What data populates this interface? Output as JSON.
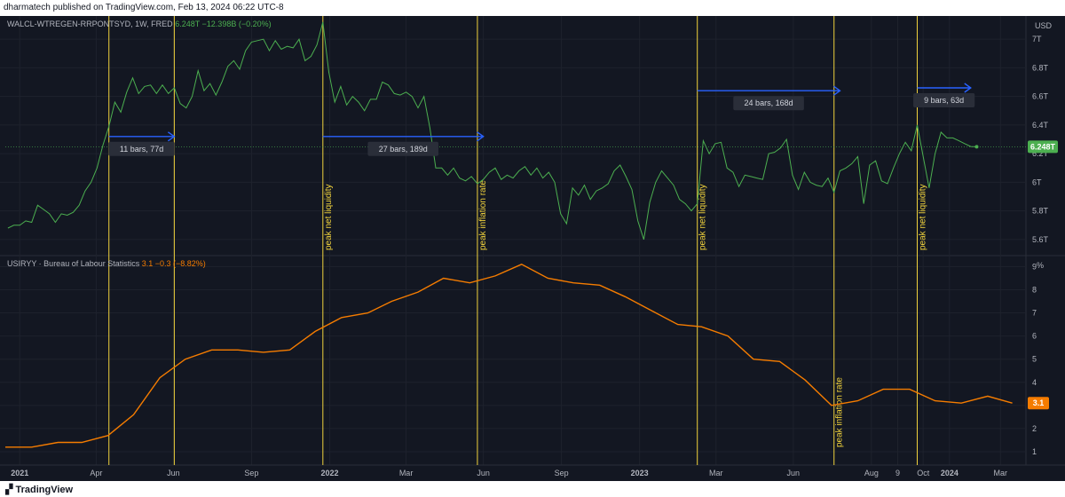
{
  "header": {
    "publish_text": "dharmatech published on TradingView.com, Feb 13, 2024 06:22 UTC-8"
  },
  "footer": {
    "brand": "TradingView"
  },
  "colors": {
    "background": "#131722",
    "liquidity": "#4caf50",
    "cpi": "#f57c00",
    "vline": "#f0d23c",
    "arrow": "#2962ff",
    "text": "#b2b5be"
  },
  "chart_data": [
    {
      "type": "line",
      "legend": {
        "symbol": "WALCL-WTREGEN-RRPONTSYD, 1W, FRED",
        "value": "6.248T",
        "change": "−12.398B (−0.20%)"
      },
      "unit_label": "USD",
      "y_ticks": [
        "5.6T",
        "5.8T",
        "6T",
        "6.2T",
        "6.4T",
        "6.6T",
        "6.8T",
        "7T"
      ],
      "ylim": [
        5.5,
        7.15
      ],
      "last_value_label": "6.248T",
      "series": [
        {
          "values": [
            [
              "2020-12-18",
              5.68
            ],
            [
              "2020-12-25",
              5.7
            ],
            [
              "2021-01-01",
              5.7
            ],
            [
              "2021-01-08",
              5.73
            ],
            [
              "2021-01-15",
              5.72
            ],
            [
              "2021-01-22",
              5.84
            ],
            [
              "2021-01-29",
              5.81
            ],
            [
              "2021-02-05",
              5.78
            ],
            [
              "2021-02-12",
              5.72
            ],
            [
              "2021-02-19",
              5.78
            ],
            [
              "2021-02-26",
              5.77
            ],
            [
              "2021-03-05",
              5.79
            ],
            [
              "2021-03-12",
              5.84
            ],
            [
              "2021-03-19",
              5.94
            ],
            [
              "2021-03-26",
              6.0
            ],
            [
              "2021-04-02",
              6.1
            ],
            [
              "2021-04-09",
              6.26
            ],
            [
              "2021-04-16",
              6.39
            ],
            [
              "2021-04-23",
              6.56
            ],
            [
              "2021-04-30",
              6.49
            ],
            [
              "2021-05-07",
              6.63
            ],
            [
              "2021-05-14",
              6.73
            ],
            [
              "2021-05-21",
              6.62
            ],
            [
              "2021-05-28",
              6.67
            ],
            [
              "2021-06-04",
              6.68
            ],
            [
              "2021-06-11",
              6.62
            ],
            [
              "2021-06-18",
              6.68
            ],
            [
              "2021-06-25",
              6.62
            ],
            [
              "2021-07-02",
              6.66
            ],
            [
              "2021-07-09",
              6.55
            ],
            [
              "2021-07-16",
              6.52
            ],
            [
              "2021-07-23",
              6.6
            ],
            [
              "2021-07-30",
              6.78
            ],
            [
              "2021-08-06",
              6.64
            ],
            [
              "2021-08-13",
              6.69
            ],
            [
              "2021-08-20",
              6.61
            ],
            [
              "2021-08-27",
              6.7
            ],
            [
              "2021-09-03",
              6.81
            ],
            [
              "2021-09-10",
              6.85
            ],
            [
              "2021-09-17",
              6.79
            ],
            [
              "2021-09-24",
              6.92
            ],
            [
              "2021-10-01",
              6.98
            ],
            [
              "2021-10-08",
              6.99
            ],
            [
              "2021-10-15",
              7.0
            ],
            [
              "2021-10-22",
              6.92
            ],
            [
              "2021-10-29",
              6.99
            ],
            [
              "2021-11-05",
              6.93
            ],
            [
              "2021-11-12",
              6.95
            ],
            [
              "2021-11-19",
              6.94
            ],
            [
              "2021-11-26",
              7.0
            ],
            [
              "2021-12-03",
              6.85
            ],
            [
              "2021-12-10",
              6.88
            ],
            [
              "2021-12-17",
              6.96
            ],
            [
              "2021-12-24",
              7.12
            ],
            [
              "2021-12-31",
              6.77
            ],
            [
              "2022-01-07",
              6.56
            ],
            [
              "2022-01-14",
              6.67
            ],
            [
              "2022-01-21",
              6.54
            ],
            [
              "2022-01-28",
              6.6
            ],
            [
              "2022-02-04",
              6.56
            ],
            [
              "2022-02-11",
              6.5
            ],
            [
              "2022-02-18",
              6.58
            ],
            [
              "2022-02-25",
              6.58
            ],
            [
              "2022-03-04",
              6.7
            ],
            [
              "2022-03-11",
              6.68
            ],
            [
              "2022-03-18",
              6.62
            ],
            [
              "2022-03-25",
              6.61
            ],
            [
              "2022-04-01",
              6.63
            ],
            [
              "2022-04-08",
              6.6
            ],
            [
              "2022-04-15",
              6.52
            ],
            [
              "2022-04-22",
              6.6
            ],
            [
              "2022-04-29",
              6.38
            ],
            [
              "2022-05-06",
              6.1
            ],
            [
              "2022-05-13",
              6.1
            ],
            [
              "2022-05-20",
              6.05
            ],
            [
              "2022-05-27",
              6.1
            ],
            [
              "2022-06-03",
              6.03
            ],
            [
              "2022-06-10",
              6.01
            ],
            [
              "2022-06-17",
              6.04
            ],
            [
              "2022-06-24",
              5.99
            ],
            [
              "2022-07-01",
              6.02
            ],
            [
              "2022-07-08",
              6.07
            ],
            [
              "2022-07-15",
              6.1
            ],
            [
              "2022-07-22",
              6.02
            ],
            [
              "2022-07-29",
              6.05
            ],
            [
              "2022-08-05",
              6.03
            ],
            [
              "2022-08-12",
              6.08
            ],
            [
              "2022-08-19",
              6.11
            ],
            [
              "2022-08-26",
              6.05
            ],
            [
              "2022-09-02",
              6.1
            ],
            [
              "2022-09-09",
              6.03
            ],
            [
              "2022-09-16",
              6.07
            ],
            [
              "2022-09-23",
              6.0
            ],
            [
              "2022-09-30",
              5.78
            ],
            [
              "2022-10-07",
              5.71
            ],
            [
              "2022-10-14",
              5.96
            ],
            [
              "2022-10-21",
              5.91
            ],
            [
              "2022-10-28",
              5.98
            ],
            [
              "2022-11-04",
              5.88
            ],
            [
              "2022-11-11",
              5.94
            ],
            [
              "2022-11-18",
              5.96
            ],
            [
              "2022-11-25",
              5.99
            ],
            [
              "2022-12-02",
              6.08
            ],
            [
              "2022-12-09",
              6.12
            ],
            [
              "2022-12-16",
              6.04
            ],
            [
              "2022-12-23",
              5.95
            ],
            [
              "2022-12-30",
              5.73
            ],
            [
              "2023-01-06",
              5.6
            ],
            [
              "2023-01-13",
              5.86
            ],
            [
              "2023-01-20",
              6.0
            ],
            [
              "2023-01-27",
              6.08
            ],
            [
              "2023-02-03",
              6.03
            ],
            [
              "2023-02-10",
              5.98
            ],
            [
              "2023-02-17",
              5.88
            ],
            [
              "2023-02-24",
              5.85
            ],
            [
              "2023-03-03",
              5.8
            ],
            [
              "2023-03-10",
              5.85
            ],
            [
              "2023-03-17",
              6.29
            ],
            [
              "2023-03-24",
              6.2
            ],
            [
              "2023-03-31",
              6.27
            ],
            [
              "2023-04-07",
              6.28
            ],
            [
              "2023-04-14",
              6.1
            ],
            [
              "2023-04-21",
              6.07
            ],
            [
              "2023-04-28",
              5.97
            ],
            [
              "2023-05-05",
              6.05
            ],
            [
              "2023-05-12",
              6.04
            ],
            [
              "2023-05-19",
              6.03
            ],
            [
              "2023-05-26",
              6.02
            ],
            [
              "2023-06-02",
              6.2
            ],
            [
              "2023-06-09",
              6.21
            ],
            [
              "2023-06-16",
              6.24
            ],
            [
              "2023-06-23",
              6.3
            ],
            [
              "2023-06-30",
              6.05
            ],
            [
              "2023-07-07",
              5.95
            ],
            [
              "2023-07-14",
              6.07
            ],
            [
              "2023-07-21",
              6.0
            ],
            [
              "2023-07-28",
              5.98
            ],
            [
              "2023-08-04",
              5.97
            ],
            [
              "2023-08-11",
              6.03
            ],
            [
              "2023-08-18",
              5.93
            ],
            [
              "2023-08-25",
              6.08
            ],
            [
              "2023-09-01",
              6.1
            ],
            [
              "2023-09-08",
              6.13
            ],
            [
              "2023-09-15",
              6.18
            ],
            [
              "2023-09-22",
              5.85
            ],
            [
              "2023-09-29",
              6.12
            ],
            [
              "2023-10-06",
              6.15
            ],
            [
              "2023-10-13",
              6.01
            ],
            [
              "2023-10-20",
              5.99
            ],
            [
              "2023-10-27",
              6.1
            ],
            [
              "2023-11-03",
              6.2
            ],
            [
              "2023-11-10",
              6.28
            ],
            [
              "2023-11-17",
              6.22
            ],
            [
              "2023-11-24",
              6.4
            ],
            [
              "2023-12-01",
              6.18
            ],
            [
              "2023-12-08",
              5.96
            ],
            [
              "2023-12-15",
              6.2
            ],
            [
              "2023-12-22",
              6.35
            ],
            [
              "2023-12-29",
              6.31
            ],
            [
              "2024-01-05",
              6.31
            ],
            [
              "2024-01-12",
              6.29
            ],
            [
              "2024-01-19",
              6.27
            ],
            [
              "2024-01-26",
              6.25
            ],
            [
              "2024-02-02",
              6.248
            ]
          ]
        }
      ],
      "markers": [
        {
          "date": "2021-04-16",
          "label": ""
        },
        {
          "date": "2021-07-02",
          "label": ""
        },
        {
          "date": "2021-12-24",
          "label": "peak net liquidity"
        },
        {
          "date": "2022-06-24",
          "label": "peak inflation rate"
        },
        {
          "date": "2023-03-10",
          "label": "peak net liquidity"
        },
        {
          "date": "2023-08-18",
          "label": "peak inflation rate"
        },
        {
          "date": "2023-11-24",
          "label": "peak net liquidity"
        }
      ],
      "measurements": [
        {
          "from": "2021-04-16",
          "to": "2021-07-02",
          "level": 6.32,
          "label": "11 bars, 77d"
        },
        {
          "from": "2021-12-24",
          "to": "2022-07-01",
          "level": 6.32,
          "label": "27 bars, 189d"
        },
        {
          "from": "2023-03-10",
          "to": "2023-08-25",
          "level": 6.64,
          "label": "24 bars, 168d"
        },
        {
          "from": "2023-11-24",
          "to": "2024-01-26",
          "level": 6.66,
          "label": "9 bars, 63d"
        }
      ]
    },
    {
      "type": "line",
      "legend": {
        "symbol": "USIRYY · Bureau of Labour Statistics",
        "value": "3.1",
        "change": "−0.3 (−8.82%)"
      },
      "unit_label": "%",
      "y_ticks": [
        "1",
        "2",
        "3",
        "4",
        "5",
        "6",
        "7",
        "8",
        "9"
      ],
      "ylim": [
        0.5,
        9.4
      ],
      "last_value_label": "3.1",
      "series": [
        {
          "values": [
            [
              "2020-12-15",
              1.2
            ],
            [
              "2021-01-15",
              1.2
            ],
            [
              "2021-02-15",
              1.4
            ],
            [
              "2021-03-15",
              1.4
            ],
            [
              "2021-04-15",
              1.7
            ],
            [
              "2021-05-15",
              2.6
            ],
            [
              "2021-06-15",
              4.2
            ],
            [
              "2021-07-15",
              5.0
            ],
            [
              "2021-08-15",
              5.4
            ],
            [
              "2021-09-15",
              5.4
            ],
            [
              "2021-10-15",
              5.3
            ],
            [
              "2021-11-15",
              5.4
            ],
            [
              "2021-12-15",
              6.2
            ],
            [
              "2022-01-15",
              6.8
            ],
            [
              "2022-02-15",
              7.0
            ],
            [
              "2022-03-15",
              7.5
            ],
            [
              "2022-04-15",
              7.9
            ],
            [
              "2022-05-15",
              8.5
            ],
            [
              "2022-06-15",
              8.3
            ],
            [
              "2022-07-15",
              8.6
            ],
            [
              "2022-08-15",
              9.1
            ],
            [
              "2022-09-15",
              8.5
            ],
            [
              "2022-10-15",
              8.3
            ],
            [
              "2022-11-15",
              8.2
            ],
            [
              "2022-12-15",
              7.7
            ],
            [
              "2023-01-15",
              7.1
            ],
            [
              "2023-02-15",
              6.5
            ],
            [
              "2023-03-15",
              6.4
            ],
            [
              "2023-04-15",
              6.0
            ],
            [
              "2023-05-15",
              5.0
            ],
            [
              "2023-06-15",
              4.9
            ],
            [
              "2023-07-15",
              4.1
            ],
            [
              "2023-08-15",
              3.0
            ],
            [
              "2023-09-15",
              3.2
            ],
            [
              "2023-10-15",
              3.7
            ],
            [
              "2023-11-15",
              3.7
            ],
            [
              "2023-12-15",
              3.2
            ],
            [
              "2024-01-15",
              3.1
            ],
            [
              "2024-02-15",
              3.4
            ],
            [
              "2024-03-15",
              3.1
            ]
          ]
        }
      ]
    }
  ],
  "x_axis": {
    "ticks": [
      {
        "date": "2021-01-01",
        "label": "2021",
        "bold": true
      },
      {
        "date": "2021-04-01",
        "label": "Apr",
        "bold": false
      },
      {
        "date": "2021-07-01",
        "label": "Jun",
        "bold": false
      },
      {
        "date": "2021-10-01",
        "label": "Sep",
        "bold": false
      },
      {
        "date": "2022-01-01",
        "label": "2022",
        "bold": true
      },
      {
        "date": "2022-04-01",
        "label": "Mar",
        "bold": false
      },
      {
        "date": "2022-07-01",
        "label": "Jun",
        "bold": false
      },
      {
        "date": "2022-10-01",
        "label": "Sep",
        "bold": false
      },
      {
        "date": "2023-01-01",
        "label": "2023",
        "bold": true
      },
      {
        "date": "2023-04-01",
        "label": "Mar",
        "bold": false
      },
      {
        "date": "2023-07-01",
        "label": "Jun",
        "bold": false
      },
      {
        "date": "2023-10-01",
        "label": "Aug",
        "bold": false
      },
      {
        "date": "2023-11-01",
        "label": "9",
        "bold": false
      },
      {
        "date": "2023-12-01",
        "label": "Oct",
        "bold": false
      },
      {
        "date": "2024-01-01",
        "label": "2024",
        "bold": true
      },
      {
        "date": "2024-03-01",
        "label": "Mar",
        "bold": false
      }
    ]
  }
}
